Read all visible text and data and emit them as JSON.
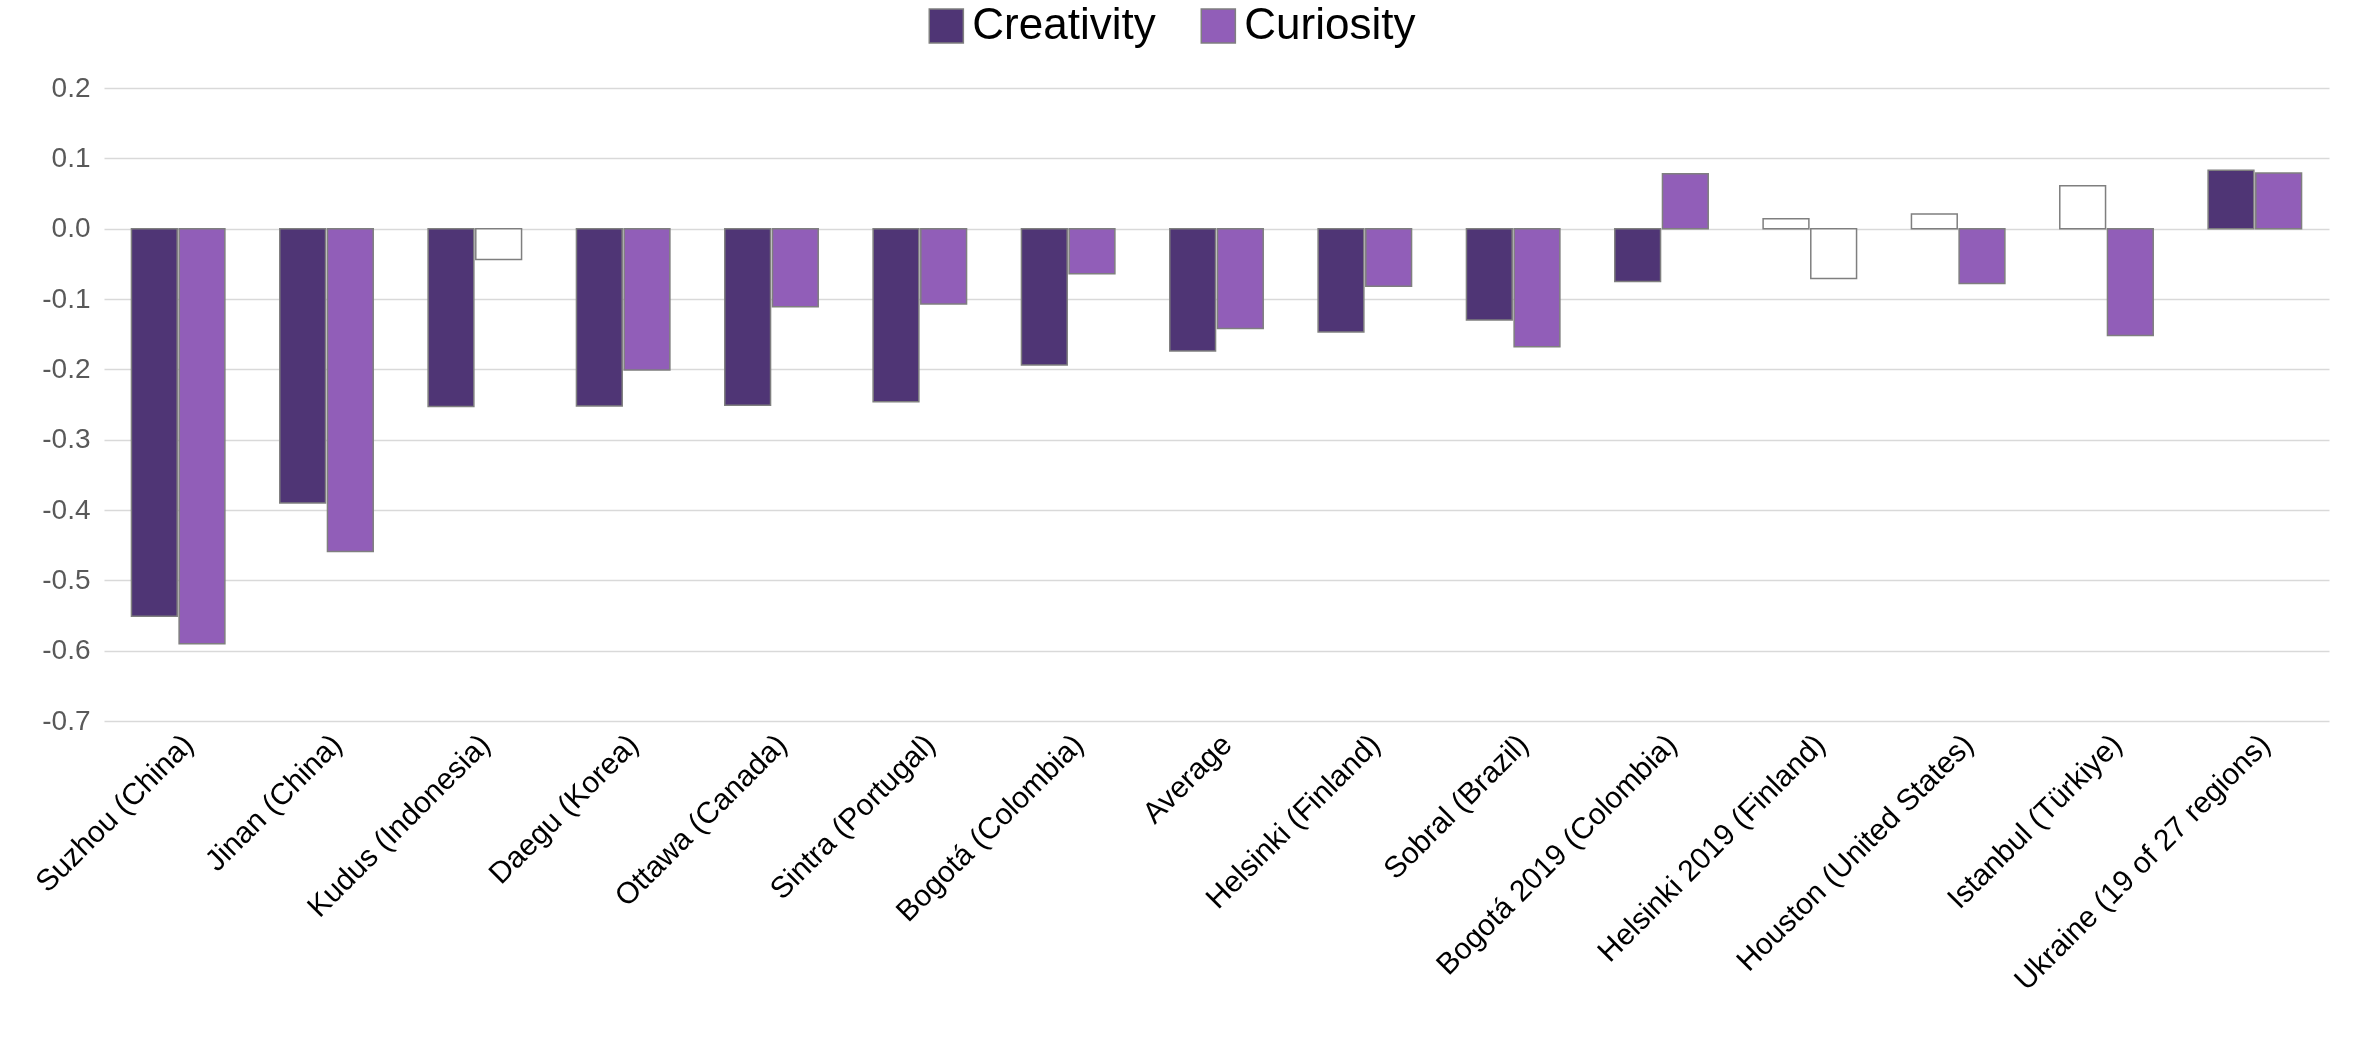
{
  "chart_data": {
    "type": "bar",
    "categories": [
      "Suzhou (China)",
      "Jinan (China)",
      "Kudus (Indonesia)",
      "Daegu (Korea)",
      "Ottawa (Canada)",
      "Sintra (Portugal)",
      "Bogotá (Colombia)",
      "Average",
      "Helsinki (Finland)",
      "Sobral (Brazil)",
      "Bogotá 2019 (Colombia)",
      "Helsinki 2019 (Finland)",
      "Houston (United States)",
      "Istanbul (Türkiye)",
      "Ukraine (19 of 27 regions)"
    ],
    "series": [
      {
        "name": "Creativity",
        "color": "#4f3575",
        "colors": [
          "#4f3575",
          "#4f3575",
          "#4f3575",
          "#4f3575",
          "#4f3575",
          "#4f3575",
          "#4f3575",
          "#4f3575",
          "#4f3575",
          "#4f3575",
          "#4f3575",
          "#ffffff",
          "#ffffff",
          "#ffffff",
          "#4f3575"
        ],
        "values": [
          -0.551,
          -0.39,
          -0.253,
          -0.252,
          -0.251,
          -0.246,
          -0.194,
          -0.174,
          -0.147,
          -0.13,
          -0.075,
          0.014,
          0.021,
          0.061,
          0.083
        ]
      },
      {
        "name": "Curiosity",
        "color": "#915eb8",
        "colors": [
          "#915eb8",
          "#915eb8",
          "#ffffff",
          "#915eb8",
          "#915eb8",
          "#915eb8",
          "#915eb8",
          "#915eb8",
          "#915eb8",
          "#915eb8",
          "#915eb8",
          "#ffffff",
          "#915eb8",
          "#915eb8",
          "#915eb8"
        ],
        "values": [
          -0.59,
          -0.459,
          -0.044,
          -0.201,
          -0.111,
          -0.107,
          -0.064,
          -0.142,
          -0.082,
          -0.168,
          0.078,
          -0.071,
          -0.078,
          -0.152,
          0.079
        ]
      }
    ],
    "ylim": [
      -0.7,
      0.2
    ],
    "yticks": [
      0.2,
      0.1,
      {
        "value": 0,
        "label": "0.0"
      },
      -0.1,
      -0.2,
      -0.3,
      -0.4,
      -0.5,
      -0.6,
      -0.7
    ],
    "grid": "y",
    "legend": "top"
  }
}
